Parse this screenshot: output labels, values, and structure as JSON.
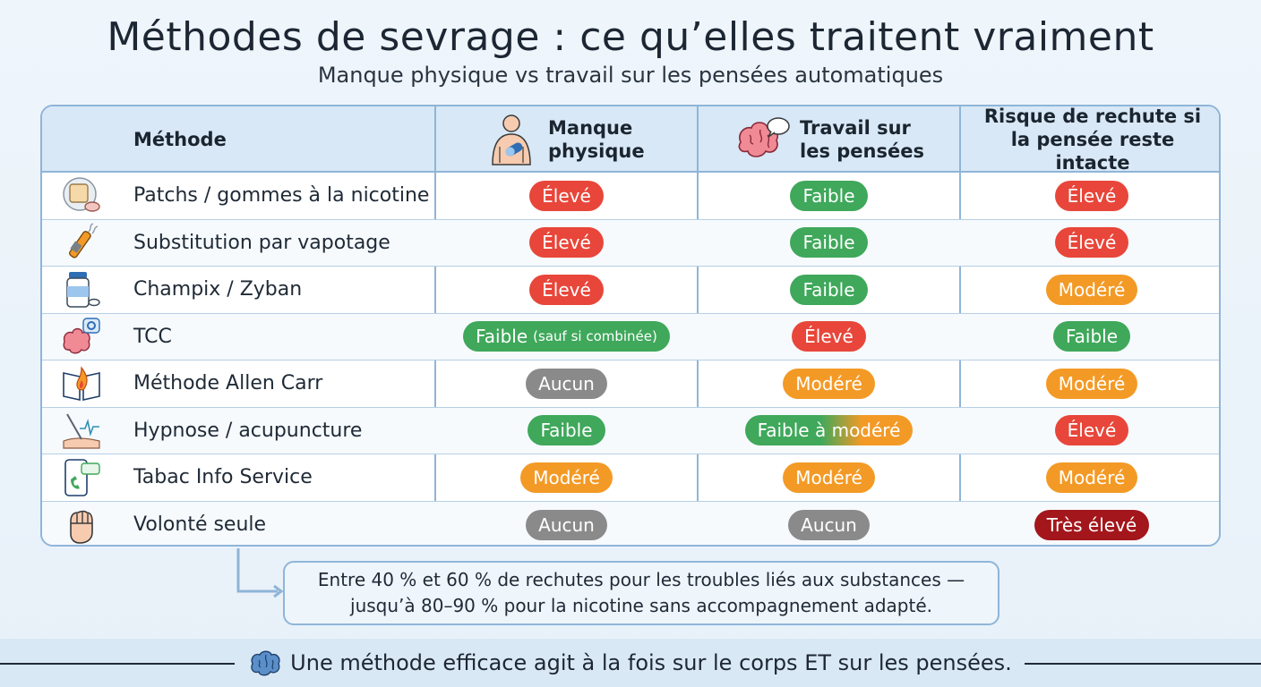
{
  "title": "Méthodes de sevrage : ce qu’elles traitent vraiment",
  "subtitle": "Manque physique vs travail sur les pensées automatiques",
  "headers": {
    "method": "Méthode",
    "physical": "Manque physique",
    "thoughts": "Travail sur les pensées",
    "relapse": "Risque de rechute si la pensée reste intacte"
  },
  "rows": [
    {
      "method": "Patchs / gommes à la nicotine",
      "icon": "nicotine-patch-icon",
      "physical": {
        "text": "Élevé",
        "level": "high"
      },
      "thoughts": {
        "text": "Faible",
        "level": "low"
      },
      "relapse": {
        "text": "Élevé",
        "level": "high"
      }
    },
    {
      "method": "Substitution par vapotage",
      "icon": "vape-icon",
      "physical": {
        "text": "Élevé",
        "level": "high"
      },
      "thoughts": {
        "text": "Faible",
        "level": "low"
      },
      "relapse": {
        "text": "Élevé",
        "level": "high"
      }
    },
    {
      "method": "Champix / Zyban",
      "icon": "pill-bottle-icon",
      "physical": {
        "text": "Élevé",
        "level": "high"
      },
      "thoughts": {
        "text": "Faible",
        "level": "low"
      },
      "relapse": {
        "text": "Modéré",
        "level": "moderate"
      }
    },
    {
      "method": "TCC",
      "icon": "brain-gear-icon",
      "physical": {
        "text": "Faible",
        "note": "(sauf si combinée)",
        "level": "low"
      },
      "thoughts": {
        "text": "Élevé",
        "level": "high"
      },
      "relapse": {
        "text": "Faible",
        "level": "low"
      }
    },
    {
      "method": "Méthode Allen Carr",
      "icon": "book-flame-icon",
      "physical": {
        "text": "Aucun",
        "level": "none"
      },
      "thoughts": {
        "text": "Modéré",
        "level": "moderate"
      },
      "relapse": {
        "text": "Modéré",
        "level": "moderate"
      }
    },
    {
      "method": "Hypnose / acupuncture",
      "icon": "acupuncture-needle-icon",
      "physical": {
        "text": "Faible",
        "level": "low"
      },
      "thoughts": {
        "text": "Faible à modéré",
        "level": "low-moderate"
      },
      "relapse": {
        "text": "Élevé",
        "level": "high"
      }
    },
    {
      "method": "Tabac Info Service",
      "icon": "phone-chat-icon",
      "physical": {
        "text": "Modéré",
        "level": "moderate"
      },
      "thoughts": {
        "text": "Modéré",
        "level": "moderate"
      },
      "relapse": {
        "text": "Modéré",
        "level": "moderate"
      }
    },
    {
      "method": "Volonté seule",
      "icon": "fist-icon",
      "physical": {
        "text": "Aucun",
        "level": "none"
      },
      "thoughts": {
        "text": "Aucun",
        "level": "none"
      },
      "relapse": {
        "text": "Très élevé",
        "level": "very-high"
      }
    }
  ],
  "colors": {
    "high": "#e8463a",
    "low": "#3fa85b",
    "moderate": "#f39a26",
    "none": "#8a8a8a",
    "very-high": "#a3161b",
    "low-moderate": "linear-gradient(90deg, #3fa85b 0%, #3fa85b 45%, #f39a26 70%, #f39a26 100%)"
  },
  "note": {
    "line1": "Entre 40 % et 60 % de rechutes pour les troubles liés aux substances —",
    "line2": "jusqu’à 80–90 % pour la nicotine sans accompagnement adapté."
  },
  "footer": "Une méthode efficace agit à la fois sur le corps ET sur les pensées."
}
